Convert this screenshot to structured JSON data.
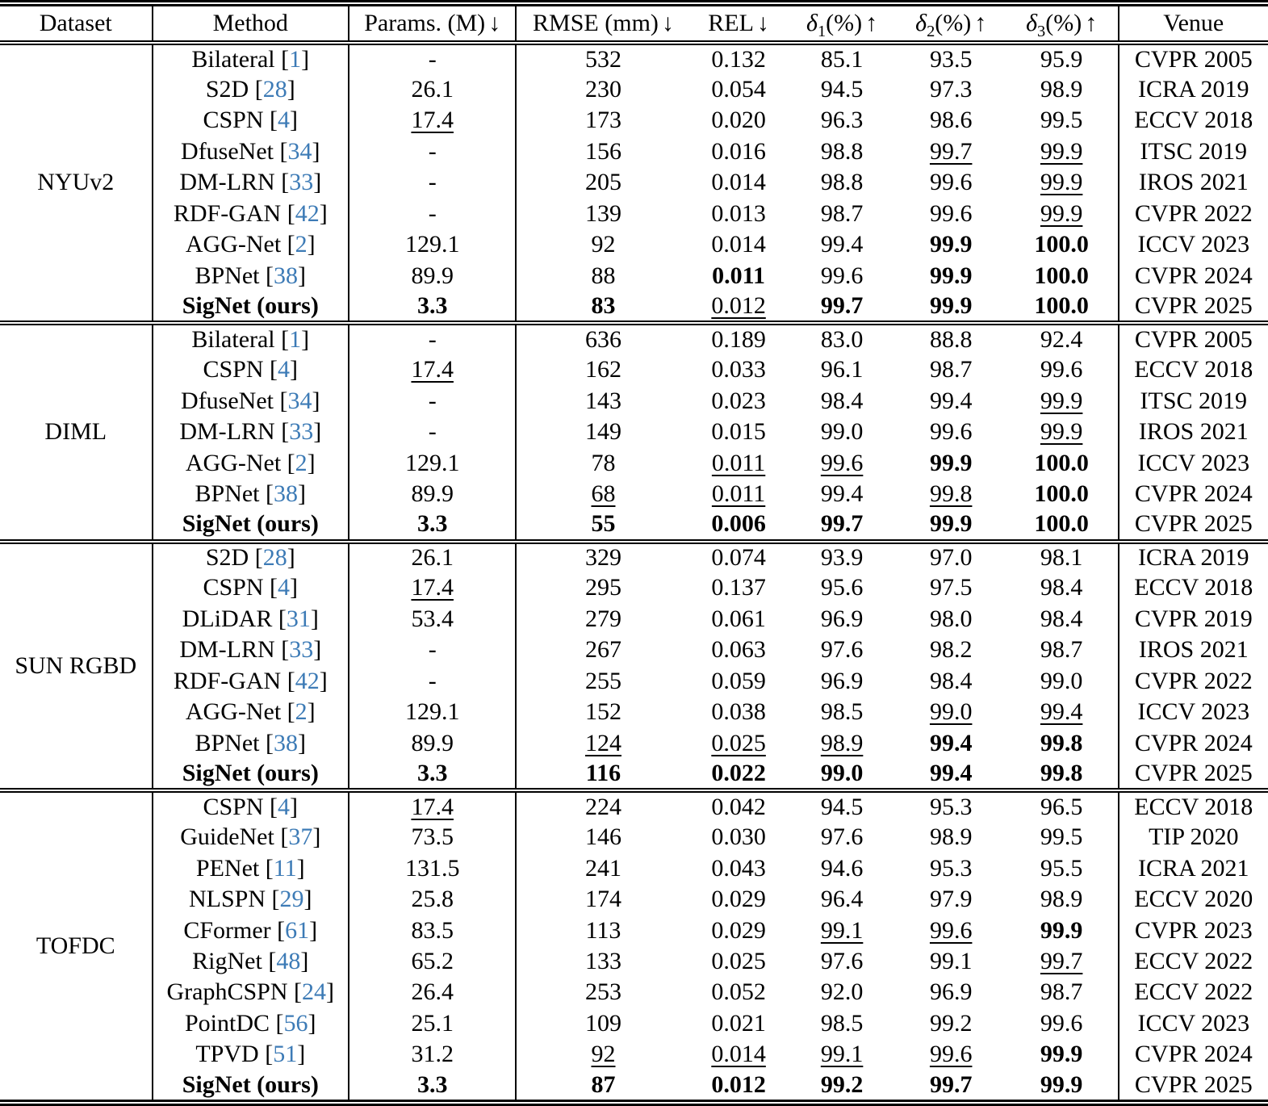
{
  "colors": {
    "citation": "#3d7bb6",
    "rule": "#000000"
  },
  "table": {
    "columns": [
      {
        "key": "dataset",
        "label": "Dataset"
      },
      {
        "key": "method",
        "label": "Method"
      },
      {
        "key": "params",
        "label": "Params. (M)",
        "arrow": "↓"
      },
      {
        "key": "rmse",
        "label": "RMSE (mm)",
        "arrow": "↓"
      },
      {
        "key": "rel",
        "label": "REL",
        "arrow": "↓"
      },
      {
        "key": "d1",
        "italic": "δ",
        "sub": "1",
        "label": "(%)",
        "arrow": "↑"
      },
      {
        "key": "d2",
        "italic": "δ",
        "sub": "2",
        "label": "(%)",
        "arrow": "↑"
      },
      {
        "key": "d3",
        "italic": "δ",
        "sub": "3",
        "label": "(%)",
        "arrow": "↑"
      },
      {
        "key": "venue",
        "label": "Venue"
      }
    ],
    "sections": [
      {
        "dataset": "NYUv2",
        "rows": [
          {
            "method": {
              "name": "Bilateral",
              "cite": "1"
            },
            "params": "-",
            "rmse": "532",
            "rel": "0.132",
            "d1": "85.1",
            "d2": "93.5",
            "d3": "95.9",
            "venue": "CVPR 2005"
          },
          {
            "method": {
              "name": "S2D",
              "cite": "28"
            },
            "params": "26.1",
            "rmse": "230",
            "rel": "0.054",
            "d1": "94.5",
            "d2": "97.3",
            "d3": "98.9",
            "venue": "ICRA 2019"
          },
          {
            "method": {
              "name": "CSPN",
              "cite": "4"
            },
            "params": {
              "v": "17.4",
              "s": "u"
            },
            "rmse": "173",
            "rel": "0.020",
            "d1": "96.3",
            "d2": "98.6",
            "d3": "99.5",
            "venue": "ECCV 2018"
          },
          {
            "method": {
              "name": "DfuseNet",
              "cite": "34"
            },
            "params": "-",
            "rmse": "156",
            "rel": "0.016",
            "d1": "98.8",
            "d2": {
              "v": "99.7",
              "s": "u"
            },
            "d3": {
              "v": "99.9",
              "s": "u"
            },
            "venue": "ITSC 2019"
          },
          {
            "method": {
              "name": "DM-LRN",
              "cite": "33"
            },
            "params": "-",
            "rmse": "205",
            "rel": "0.014",
            "d1": "98.8",
            "d2": "99.6",
            "d3": {
              "v": "99.9",
              "s": "u"
            },
            "venue": "IROS 2021"
          },
          {
            "method": {
              "name": "RDF-GAN",
              "cite": "42"
            },
            "params": "-",
            "rmse": "139",
            "rel": "0.013",
            "d1": "98.7",
            "d2": "99.6",
            "d3": {
              "v": "99.9",
              "s": "u"
            },
            "venue": "CVPR 2022"
          },
          {
            "method": {
              "name": "AGG-Net",
              "cite": "2"
            },
            "params": "129.1",
            "rmse": "92",
            "rel": "0.014",
            "d1": "99.4",
            "d2": {
              "v": "99.9",
              "s": "b"
            },
            "d3": {
              "v": "100.0",
              "s": "b"
            },
            "venue": "ICCV 2023"
          },
          {
            "method": {
              "name": "BPNet",
              "cite": "38"
            },
            "params": "89.9",
            "rmse": "88",
            "rel": {
              "v": "0.011",
              "s": "b"
            },
            "d1": "99.6",
            "d2": {
              "v": "99.9",
              "s": "b"
            },
            "d3": {
              "v": "100.0",
              "s": "b"
            },
            "venue": "CVPR 2024"
          },
          {
            "method": {
              "name": "SigNet (ours)",
              "s": "b"
            },
            "params": {
              "v": "3.3",
              "s": "b"
            },
            "rmse": {
              "v": "83",
              "s": "b"
            },
            "rel": {
              "v": "0.012",
              "s": "u"
            },
            "d1": {
              "v": "99.7",
              "s": "b"
            },
            "d2": {
              "v": "99.9",
              "s": "b"
            },
            "d3": {
              "v": "100.0",
              "s": "b"
            },
            "venue": "CVPR 2025"
          }
        ]
      },
      {
        "dataset": "DIML",
        "rows": [
          {
            "method": {
              "name": "Bilateral",
              "cite": "1"
            },
            "params": "-",
            "rmse": "636",
            "rel": "0.189",
            "d1": "83.0",
            "d2": "88.8",
            "d3": "92.4",
            "venue": "CVPR 2005"
          },
          {
            "method": {
              "name": "CSPN",
              "cite": "4"
            },
            "params": {
              "v": "17.4",
              "s": "u"
            },
            "rmse": "162",
            "rel": "0.033",
            "d1": "96.1",
            "d2": "98.7",
            "d3": "99.6",
            "venue": "ECCV 2018"
          },
          {
            "method": {
              "name": "DfuseNet",
              "cite": "34"
            },
            "params": "-",
            "rmse": "143",
            "rel": "0.023",
            "d1": "98.4",
            "d2": "99.4",
            "d3": {
              "v": "99.9",
              "s": "u"
            },
            "venue": "ITSC 2019"
          },
          {
            "method": {
              "name": "DM-LRN",
              "cite": "33"
            },
            "params": "-",
            "rmse": "149",
            "rel": "0.015",
            "d1": "99.0",
            "d2": "99.6",
            "d3": {
              "v": "99.9",
              "s": "u"
            },
            "venue": "IROS 2021"
          },
          {
            "method": {
              "name": "AGG-Net",
              "cite": "2"
            },
            "params": "129.1",
            "rmse": "78",
            "rel": {
              "v": "0.011",
              "s": "u"
            },
            "d1": {
              "v": "99.6",
              "s": "u"
            },
            "d2": {
              "v": "99.9",
              "s": "b"
            },
            "d3": {
              "v": "100.0",
              "s": "b"
            },
            "venue": "ICCV 2023"
          },
          {
            "method": {
              "name": "BPNet",
              "cite": "38"
            },
            "params": "89.9",
            "rmse": {
              "v": "68",
              "s": "u"
            },
            "rel": {
              "v": "0.011",
              "s": "u"
            },
            "d1": "99.4",
            "d2": {
              "v": "99.8",
              "s": "u"
            },
            "d3": {
              "v": "100.0",
              "s": "b"
            },
            "venue": "CVPR 2024"
          },
          {
            "method": {
              "name": "SigNet (ours)",
              "s": "b"
            },
            "params": {
              "v": "3.3",
              "s": "b"
            },
            "rmse": {
              "v": "55",
              "s": "b"
            },
            "rel": {
              "v": "0.006",
              "s": "b"
            },
            "d1": {
              "v": "99.7",
              "s": "b"
            },
            "d2": {
              "v": "99.9",
              "s": "b"
            },
            "d3": {
              "v": "100.0",
              "s": "b"
            },
            "venue": "CVPR 2025"
          }
        ]
      },
      {
        "dataset": "SUN RGBD",
        "rows": [
          {
            "method": {
              "name": "S2D",
              "cite": "28"
            },
            "params": "26.1",
            "rmse": "329",
            "rel": "0.074",
            "d1": "93.9",
            "d2": "97.0",
            "d3": "98.1",
            "venue": "ICRA 2019"
          },
          {
            "method": {
              "name": "CSPN",
              "cite": "4"
            },
            "params": {
              "v": "17.4",
              "s": "u"
            },
            "rmse": "295",
            "rel": "0.137",
            "d1": "95.6",
            "d2": "97.5",
            "d3": "98.4",
            "venue": "ECCV 2018"
          },
          {
            "method": {
              "name": "DLiDAR",
              "cite": "31"
            },
            "params": "53.4",
            "rmse": "279",
            "rel": "0.061",
            "d1": "96.9",
            "d2": "98.0",
            "d3": "98.4",
            "venue": "CVPR 2019"
          },
          {
            "method": {
              "name": "DM-LRN",
              "cite": "33"
            },
            "params": "-",
            "rmse": "267",
            "rel": "0.063",
            "d1": "97.6",
            "d2": "98.2",
            "d3": "98.7",
            "venue": "IROS 2021"
          },
          {
            "method": {
              "name": "RDF-GAN",
              "cite": "42"
            },
            "params": "-",
            "rmse": "255",
            "rel": "0.059",
            "d1": "96.9",
            "d2": "98.4",
            "d3": "99.0",
            "venue": "CVPR 2022"
          },
          {
            "method": {
              "name": "AGG-Net",
              "cite": "2"
            },
            "params": "129.1",
            "rmse": "152",
            "rel": "0.038",
            "d1": "98.5",
            "d2": {
              "v": "99.0",
              "s": "u"
            },
            "d3": {
              "v": "99.4",
              "s": "u"
            },
            "venue": "ICCV 2023"
          },
          {
            "method": {
              "name": "BPNet",
              "cite": "38"
            },
            "params": "89.9",
            "rmse": {
              "v": "124",
              "s": "u"
            },
            "rel": {
              "v": "0.025",
              "s": "u"
            },
            "d1": {
              "v": "98.9",
              "s": "u"
            },
            "d2": {
              "v": "99.4",
              "s": "b"
            },
            "d3": {
              "v": "99.8",
              "s": "b"
            },
            "venue": "CVPR 2024"
          },
          {
            "method": {
              "name": "SigNet (ours)",
              "s": "b"
            },
            "params": {
              "v": "3.3",
              "s": "b"
            },
            "rmse": {
              "v": "116",
              "s": "b"
            },
            "rel": {
              "v": "0.022",
              "s": "b"
            },
            "d1": {
              "v": "99.0",
              "s": "b"
            },
            "d2": {
              "v": "99.4",
              "s": "b"
            },
            "d3": {
              "v": "99.8",
              "s": "b"
            },
            "venue": "CVPR 2025"
          }
        ]
      },
      {
        "dataset": "TOFDC",
        "rows": [
          {
            "method": {
              "name": "CSPN",
              "cite": "4"
            },
            "params": {
              "v": "17.4",
              "s": "u"
            },
            "rmse": "224",
            "rel": "0.042",
            "d1": "94.5",
            "d2": "95.3",
            "d3": "96.5",
            "venue": "ECCV 2018"
          },
          {
            "method": {
              "name": "GuideNet",
              "cite": "37"
            },
            "params": "73.5",
            "rmse": "146",
            "rel": "0.030",
            "d1": "97.6",
            "d2": "98.9",
            "d3": "99.5",
            "venue": "TIP 2020"
          },
          {
            "method": {
              "name": "PENet",
              "cite": "11"
            },
            "params": "131.5",
            "rmse": "241",
            "rel": "0.043",
            "d1": "94.6",
            "d2": "95.3",
            "d3": "95.5",
            "venue": "ICRA 2021"
          },
          {
            "method": {
              "name": "NLSPN",
              "cite": "29"
            },
            "params": "25.8",
            "rmse": "174",
            "rel": "0.029",
            "d1": "96.4",
            "d2": "97.9",
            "d3": "98.9",
            "venue": "ECCV 2020"
          },
          {
            "method": {
              "name": "CFormer",
              "cite": "61"
            },
            "params": "83.5",
            "rmse": "113",
            "rel": "0.029",
            "d1": {
              "v": "99.1",
              "s": "u"
            },
            "d2": {
              "v": "99.6",
              "s": "u"
            },
            "d3": {
              "v": "99.9",
              "s": "b"
            },
            "venue": "CVPR 2023"
          },
          {
            "method": {
              "name": "RigNet",
              "cite": "48"
            },
            "params": "65.2",
            "rmse": "133",
            "rel": "0.025",
            "d1": "97.6",
            "d2": "99.1",
            "d3": {
              "v": "99.7",
              "s": "u"
            },
            "venue": "ECCV 2022"
          },
          {
            "method": {
              "name": "GraphCSPN",
              "cite": "24"
            },
            "params": "26.4",
            "rmse": "253",
            "rel": "0.052",
            "d1": "92.0",
            "d2": "96.9",
            "d3": "98.7",
            "venue": "ECCV 2022"
          },
          {
            "method": {
              "name": "PointDC",
              "cite": "56"
            },
            "params": "25.1",
            "rmse": "109",
            "rel": "0.021",
            "d1": "98.5",
            "d2": "99.2",
            "d3": "99.6",
            "venue": "ICCV 2023"
          },
          {
            "method": {
              "name": "TPVD",
              "cite": "51"
            },
            "params": "31.2",
            "rmse": {
              "v": "92",
              "s": "u"
            },
            "rel": {
              "v": "0.014",
              "s": "u"
            },
            "d1": {
              "v": "99.1",
              "s": "u"
            },
            "d2": {
              "v": "99.6",
              "s": "u"
            },
            "d3": {
              "v": "99.9",
              "s": "b"
            },
            "venue": "CVPR 2024"
          },
          {
            "method": {
              "name": "SigNet (ours)",
              "s": "b"
            },
            "params": {
              "v": "3.3",
              "s": "b"
            },
            "rmse": {
              "v": "87",
              "s": "b"
            },
            "rel": {
              "v": "0.012",
              "s": "b"
            },
            "d1": {
              "v": "99.2",
              "s": "b"
            },
            "d2": {
              "v": "99.7",
              "s": "b"
            },
            "d3": {
              "v": "99.9",
              "s": "b"
            },
            "venue": "CVPR 2025"
          }
        ]
      }
    ]
  }
}
